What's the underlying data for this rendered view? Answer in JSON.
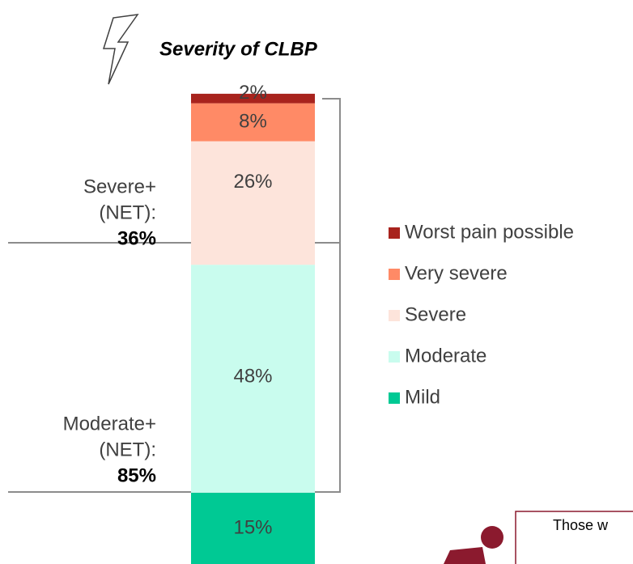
{
  "chart_data": {
    "type": "bar",
    "stacked": true,
    "title": "Severity of CLBP",
    "categories": [
      null
    ],
    "series": [
      {
        "name": "Worst pain possible",
        "color": "#a8231d",
        "values": [
          2
        ],
        "value_labels": [
          "2%"
        ]
      },
      {
        "name": "Very severe",
        "color": "#ff8a66",
        "values": [
          8
        ],
        "value_labels": [
          "8%"
        ]
      },
      {
        "name": "Severe",
        "color": "#fde4db",
        "values": [
          26
        ],
        "value_labels": [
          "26%"
        ]
      },
      {
        "name": "Moderate",
        "color": "#c9fcee",
        "values": [
          48
        ],
        "value_labels": [
          "48%"
        ]
      },
      {
        "name": "Mild",
        "color": "#00c994",
        "values": [
          15
        ],
        "value_labels": [
          "15%"
        ]
      }
    ],
    "legend": "right",
    "annotations": [
      {
        "lines": [
          "Severe+",
          "(NET):"
        ],
        "total": "36%"
      },
      {
        "lines": [
          "Moderate+",
          "(NET):"
        ],
        "total": "85%"
      }
    ],
    "callout": "Those w"
  }
}
